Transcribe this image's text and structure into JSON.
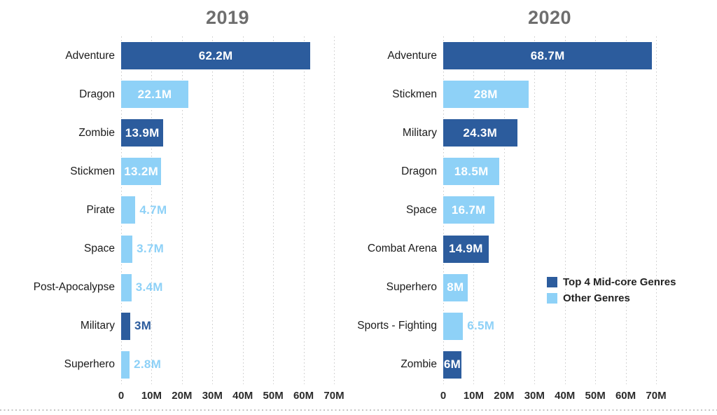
{
  "colors": {
    "dark": "#2c5c9d",
    "light": "#8ed1f7",
    "title": "#6e6e6e",
    "grid": "#c7c7c7",
    "axis_text": "#2b2b2b",
    "category_text": "#1b1b1b"
  },
  "legend": {
    "items": [
      {
        "label": "Top 4 Mid-core Genres",
        "series": "dark"
      },
      {
        "label": "Other Genres",
        "series": "light"
      }
    ]
  },
  "chart_data": [
    {
      "type": "bar",
      "orientation": "horizontal",
      "title": "2019",
      "xlabel": "",
      "ylabel": "",
      "xlim_millions": [
        0,
        70
      ],
      "x_ticks": [
        "0",
        "10M",
        "20M",
        "30M",
        "40M",
        "50M",
        "60M",
        "70M"
      ],
      "grid": "vertical-dotted",
      "value_unit": "millions",
      "items": [
        {
          "category": "Adventure",
          "value": 62.2,
          "label": "62.2M",
          "series": "dark",
          "label_inside": true
        },
        {
          "category": "Dragon",
          "value": 22.1,
          "label": "22.1M",
          "series": "light",
          "label_inside": true
        },
        {
          "category": "Zombie",
          "value": 13.9,
          "label": "13.9M",
          "series": "dark",
          "label_inside": true
        },
        {
          "category": "Stickmen",
          "value": 13.2,
          "label": "13.2M",
          "series": "light",
          "label_inside": true
        },
        {
          "category": "Pirate",
          "value": 4.7,
          "label": "4.7M",
          "series": "light",
          "label_inside": false
        },
        {
          "category": "Space",
          "value": 3.7,
          "label": "3.7M",
          "series": "light",
          "label_inside": false
        },
        {
          "category": "Post-Apocalypse",
          "value": 3.4,
          "label": "3.4M",
          "series": "light",
          "label_inside": false
        },
        {
          "category": "Military",
          "value": 3,
          "label": "3M",
          "series": "dark",
          "label_inside": false
        },
        {
          "category": "Superhero",
          "value": 2.8,
          "label": "2.8M",
          "series": "light",
          "label_inside": false
        }
      ]
    },
    {
      "type": "bar",
      "orientation": "horizontal",
      "title": "2020",
      "xlabel": "",
      "ylabel": "",
      "xlim_millions": [
        0,
        70
      ],
      "x_ticks": [
        "0",
        "10M",
        "20M",
        "30M",
        "40M",
        "50M",
        "60M",
        "70M"
      ],
      "grid": "vertical-dotted",
      "value_unit": "millions",
      "items": [
        {
          "category": "Adventure",
          "value": 68.7,
          "label": "68.7M",
          "series": "dark",
          "label_inside": true
        },
        {
          "category": "Stickmen",
          "value": 28,
          "label": "28M",
          "series": "light",
          "label_inside": true
        },
        {
          "category": "Military",
          "value": 24.3,
          "label": "24.3M",
          "series": "dark",
          "label_inside": true
        },
        {
          "category": "Dragon",
          "value": 18.5,
          "label": "18.5M",
          "series": "light",
          "label_inside": true
        },
        {
          "category": "Space",
          "value": 16.7,
          "label": "16.7M",
          "series": "light",
          "label_inside": true
        },
        {
          "category": "Combat Arena",
          "value": 14.9,
          "label": "14.9M",
          "series": "dark",
          "label_inside": true
        },
        {
          "category": "Superhero",
          "value": 8,
          "label": "8M",
          "series": "light",
          "label_inside": true
        },
        {
          "category": "Sports - Fighting",
          "value": 6.5,
          "label": "6.5M",
          "series": "light",
          "label_inside": false
        },
        {
          "category": "Zombie",
          "value": 6,
          "label": "6M",
          "series": "dark",
          "label_inside": true
        }
      ]
    }
  ]
}
